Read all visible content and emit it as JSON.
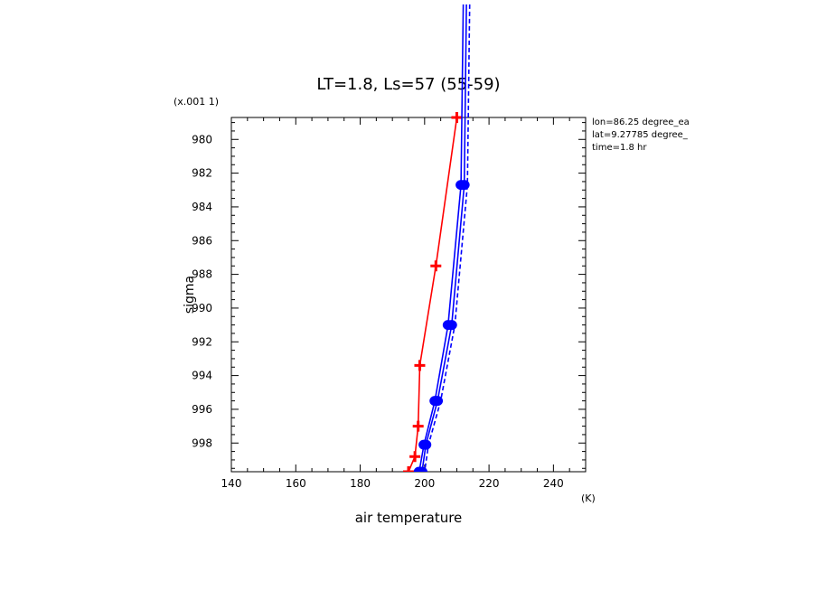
{
  "chart_data": {
    "type": "line",
    "title": "LT=1.8, Ls=57 (55-59)",
    "xlabel": "air temperature",
    "xunit": "(K)",
    "ylabel": "sigma",
    "yscale_label": "(x.001 1)",
    "xlim": [
      140,
      250
    ],
    "ylim": [
      999.7,
      978.7
    ],
    "x_ticks": [
      140,
      160,
      180,
      200,
      220,
      240
    ],
    "y_ticks": [
      980,
      982,
      984,
      986,
      988,
      990,
      992,
      994,
      996,
      998
    ],
    "annotations": [
      "lon=86.25 degree_ea",
      "lat=9.27785 degree_",
      "time=1.8 hr"
    ],
    "series": [
      {
        "name": "red",
        "color": "#ff0000",
        "marker": "plus",
        "dashed": false,
        "points": [
          [
            210,
            978.7
          ],
          [
            203.5,
            987.5
          ],
          [
            198.5,
            993.4
          ],
          [
            198,
            997.0
          ],
          [
            197,
            998.8
          ],
          [
            195,
            999.7
          ]
        ]
      },
      {
        "name": "blue",
        "color": "#0000ff",
        "marker": "circle",
        "dashed": false,
        "points": [
          [
            212,
            972
          ],
          [
            211.3,
            982.7
          ],
          [
            207.3,
            991.0
          ],
          [
            203.2,
            995.5
          ],
          [
            199.8,
            998.1
          ],
          [
            198.3,
            999.7
          ]
        ]
      },
      {
        "name": "blue",
        "color": "#0000ff",
        "marker": "circle",
        "dashed": false,
        "points": [
          [
            213,
            972
          ],
          [
            212.3,
            982.7
          ],
          [
            208.4,
            991.0
          ],
          [
            204,
            995.5
          ],
          [
            200.4,
            998.1
          ],
          [
            199.2,
            999.7
          ]
        ]
      },
      {
        "name": "blue",
        "color": "#0000ff",
        "marker": "none",
        "dashed": true,
        "points": [
          [
            214,
            972
          ],
          [
            213.3,
            982.7
          ],
          [
            209.4,
            991.0
          ],
          [
            205,
            995.5
          ],
          [
            201.2,
            998.1
          ],
          [
            200,
            999.7
          ]
        ]
      }
    ]
  }
}
